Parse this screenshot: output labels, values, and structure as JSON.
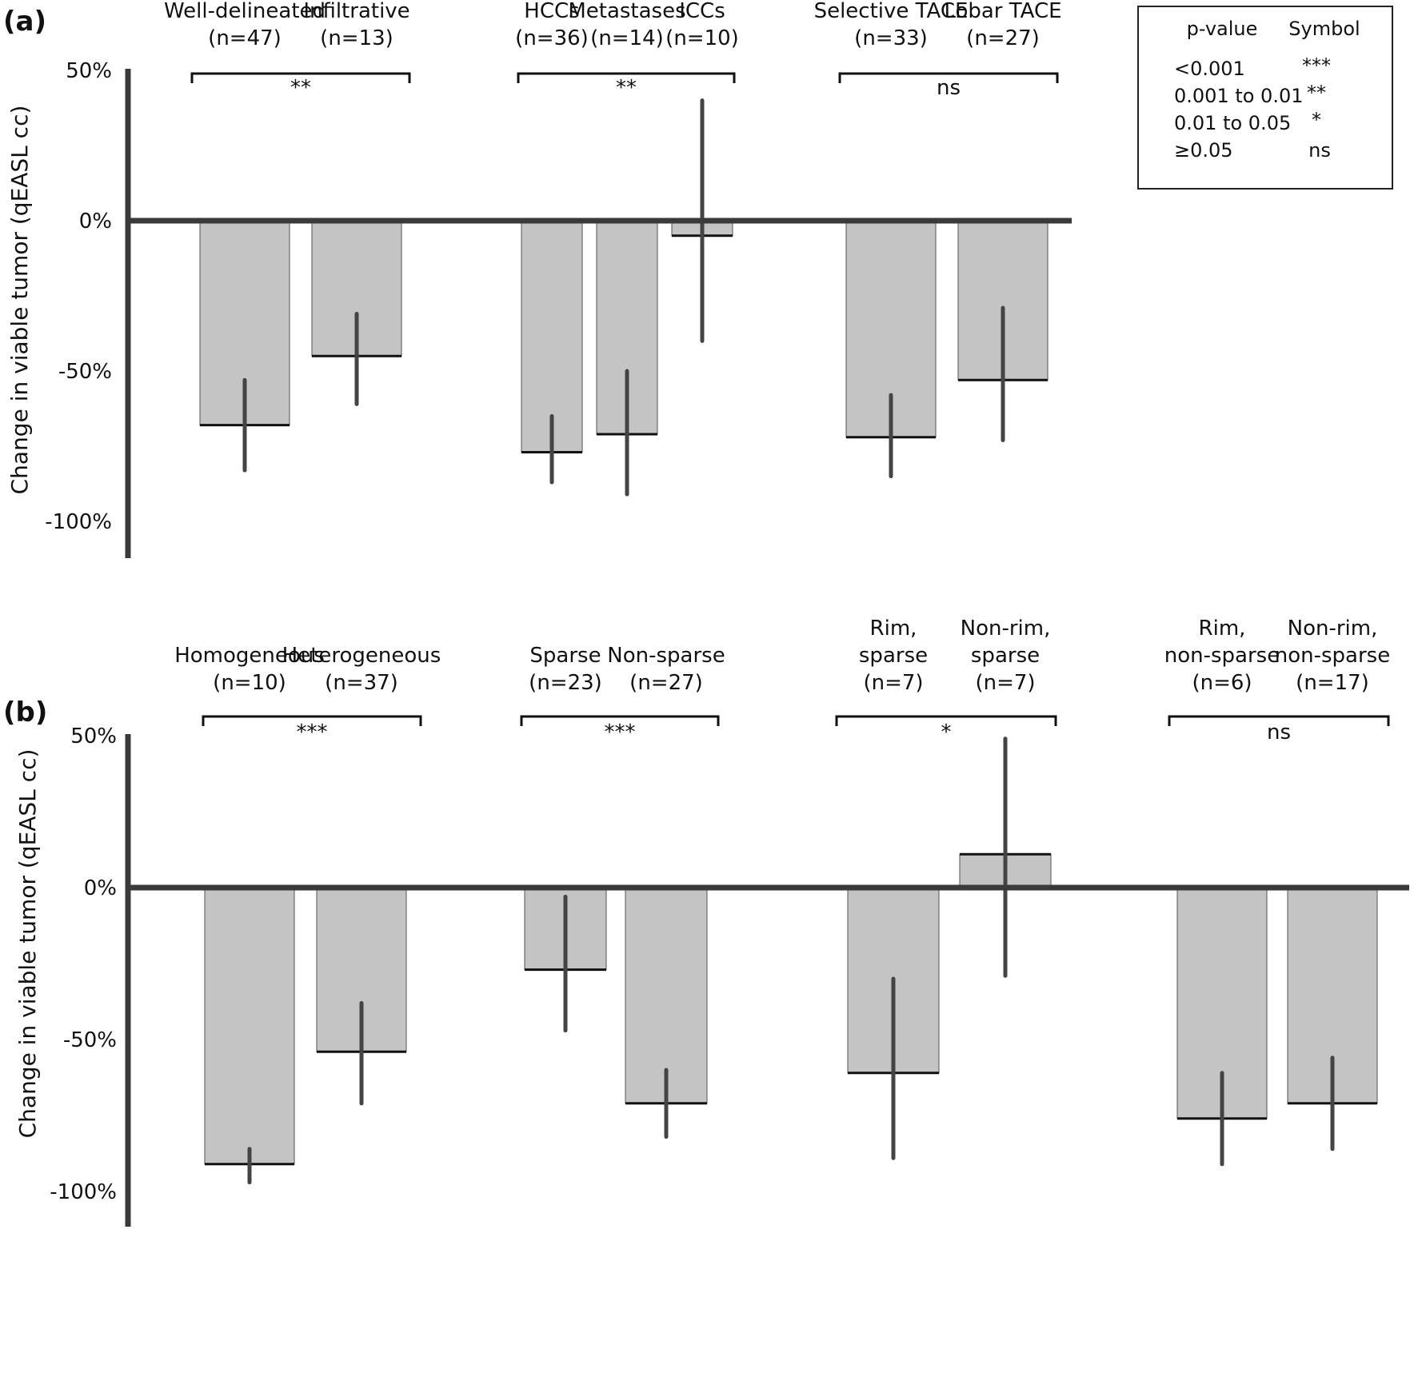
{
  "colors": {
    "bar_fill": "#c4c4c4",
    "bar_top": "#111111",
    "axis": "#3a3a3a",
    "error_bar": "#444444"
  },
  "legend": {
    "header_p": "p-value",
    "header_symbol": "Symbol",
    "rows": [
      {
        "p": "<0.001",
        "symbol": "***"
      },
      {
        "p": "0.001 to 0.01",
        "symbol": "**"
      },
      {
        "p": "0.01 to 0.05",
        "symbol": "*"
      },
      {
        "p": "≥0.05",
        "symbol": "ns"
      }
    ]
  },
  "chart_data": [
    {
      "type": "bar",
      "panel": "(a)",
      "ylabel": "Change in viable tumor (qEASL cc)",
      "ylim": [
        -100,
        50
      ],
      "yticks": [
        50,
        0,
        -50,
        -100
      ],
      "ytick_labels": [
        "50%",
        "0%",
        "-50%",
        "-100%"
      ],
      "categories": [
        {
          "lines": [
            "Well-delineated",
            "(n=47)"
          ],
          "value": -68,
          "err_low": -83,
          "err_high": -53
        },
        {
          "lines": [
            "Infiltrative",
            "(n=13)"
          ],
          "value": -45,
          "err_low": -61,
          "err_high": -31
        },
        {
          "lines": [
            "HCCs",
            "(n=36)"
          ],
          "value": -77,
          "err_low": -87,
          "err_high": -65
        },
        {
          "lines": [
            "Metastases",
            "(n=14)"
          ],
          "value": -71,
          "err_low": -91,
          "err_high": -50
        },
        {
          "lines": [
            "ICCs",
            "(n=10)"
          ],
          "value": -5,
          "err_low": -40,
          "err_high": 40
        },
        {
          "lines": [
            "Selective TACE",
            "(n=33)"
          ],
          "value": -72,
          "err_low": -85,
          "err_high": -58
        },
        {
          "lines": [
            "Lobar TACE",
            "(n=27)"
          ],
          "value": -53,
          "err_low": -73,
          "err_high": -29
        }
      ],
      "comparisons": [
        {
          "from": 0,
          "to": 1,
          "label": "**"
        },
        {
          "from": 2,
          "to": 4,
          "label": "**"
        },
        {
          "from": 5,
          "to": 6,
          "label": "ns"
        }
      ]
    },
    {
      "type": "bar",
      "panel": "(b)",
      "ylabel": "Change in viable tumor (qEASL cc)",
      "ylim": [
        -100,
        50
      ],
      "yticks": [
        50,
        0,
        -50,
        -100
      ],
      "ytick_labels": [
        "50%",
        "0%",
        "-50%",
        "-100%"
      ],
      "categories": [
        {
          "lines": [
            "Homogeneous",
            "(n=10)"
          ],
          "value": -91,
          "err_low": -97,
          "err_high": -86
        },
        {
          "lines": [
            "Heterogeneous",
            "(n=37)"
          ],
          "value": -54,
          "err_low": -71,
          "err_high": -38
        },
        {
          "lines": [
            "Sparse",
            "(n=23)"
          ],
          "value": -27,
          "err_low": -47,
          "err_high": -3
        },
        {
          "lines": [
            "Non-sparse",
            "(n=27)"
          ],
          "value": -71,
          "err_low": -82,
          "err_high": -60
        },
        {
          "lines": [
            "Rim,",
            "sparse",
            "(n=7)"
          ],
          "value": -61,
          "err_low": -89,
          "err_high": -30
        },
        {
          "lines": [
            "Non-rim,",
            "sparse",
            "(n=7)"
          ],
          "value": 11,
          "err_low": -29,
          "err_high": 49
        },
        {
          "lines": [
            "Rim,",
            "non-sparse",
            "(n=6)"
          ],
          "value": -76,
          "err_low": -91,
          "err_high": -61
        },
        {
          "lines": [
            "Non-rim,",
            "non-sparse",
            "(n=17)"
          ],
          "value": -71,
          "err_low": -86,
          "err_high": -56
        }
      ],
      "comparisons": [
        {
          "from": 0,
          "to": 1,
          "label": "***"
        },
        {
          "from": 2,
          "to": 3,
          "label": "***"
        },
        {
          "from": 4,
          "to": 5,
          "label": "*"
        },
        {
          "from": 6,
          "to": 7,
          "label": "ns"
        }
      ]
    }
  ]
}
